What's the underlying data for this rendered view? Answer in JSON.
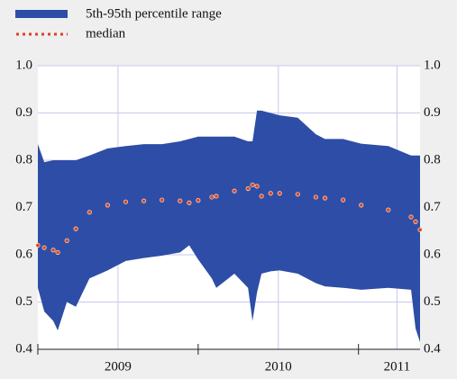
{
  "chart_data": {
    "type": "band",
    "x": [
      2009.0,
      2009.04,
      2009.096,
      2009.124,
      2009.181,
      2009.237,
      2009.322,
      2009.435,
      2009.548,
      2009.661,
      2009.774,
      2009.887,
      2009.944,
      2010.0,
      2010.085,
      2010.113,
      2010.226,
      2010.311,
      2010.339,
      2010.367,
      2010.395,
      2010.452,
      2010.508,
      2010.621,
      2010.734,
      2010.791,
      2010.904,
      2011.017,
      2011.186,
      2011.328,
      2011.356,
      2011.384
    ],
    "series": [
      {
        "name": "5th-95th percentile range",
        "color": "#2e4da6",
        "values": [
          0.834,
          0.796,
          0.8,
          0.8,
          0.8,
          0.8,
          0.81,
          0.825,
          0.83,
          0.834,
          0.834,
          0.84,
          0.845,
          0.85,
          0.85,
          0.85,
          0.85,
          0.84,
          0.84,
          0.905,
          0.905,
          0.9,
          0.895,
          0.89,
          0.855,
          0.845,
          0.845,
          0.835,
          0.83,
          0.81,
          0.81,
          0.81
        ],
        "lower": [
          0.53,
          0.48,
          0.46,
          0.44,
          0.5,
          0.49,
          0.55,
          0.567,
          0.587,
          0.593,
          0.598,
          0.605,
          0.62,
          0.59,
          0.55,
          0.53,
          0.56,
          0.53,
          0.46,
          0.52,
          0.56,
          0.565,
          0.567,
          0.56,
          0.54,
          0.533,
          0.53,
          0.526,
          0.53,
          0.526,
          0.444,
          0.415
        ]
      },
      {
        "name": "median",
        "color": "#d9422b",
        "values": [
          0.62,
          0.615,
          0.61,
          0.605,
          0.63,
          0.655,
          0.69,
          0.705,
          0.712,
          0.714,
          0.716,
          0.714,
          0.71,
          0.715,
          0.722,
          0.724,
          0.735,
          0.74,
          0.748,
          0.745,
          0.724,
          0.73,
          0.73,
          0.728,
          0.722,
          0.72,
          0.716,
          0.705,
          0.695,
          0.68,
          0.67,
          0.653
        ]
      }
    ],
    "xlim": [
      2009.0,
      2011.384
    ],
    "xticks": [
      2009,
      2010,
      2011
    ],
    "xlabels": [
      {
        "value": 2009.5,
        "label": "2009"
      },
      {
        "value": 2010.5,
        "label": "2010"
      },
      {
        "value": 2011.24,
        "label": "2011"
      }
    ],
    "ylim": [
      0.4,
      1.0
    ],
    "yticks": [
      {
        "value": 0.4,
        "label": "0.4"
      },
      {
        "value": 0.5,
        "label": "0.5"
      },
      {
        "value": 0.6,
        "label": "0.6"
      },
      {
        "value": 0.7,
        "label": "0.7"
      },
      {
        "value": 0.8,
        "label": "0.8"
      },
      {
        "value": 0.9,
        "label": "0.9"
      },
      {
        "value": 1.0,
        "label": "1.0"
      }
    ],
    "y2lim": [
      0.4,
      1.0
    ],
    "y2ticks": [
      {
        "value": 0.4,
        "label": "0.4"
      },
      {
        "value": 0.5,
        "label": "0.5"
      },
      {
        "value": 0.6,
        "label": "0.6"
      },
      {
        "value": 0.7,
        "label": "0.7"
      },
      {
        "value": 0.8,
        "label": "0.8"
      },
      {
        "value": 0.9,
        "label": "0.9"
      },
      {
        "value": 1.0,
        "label": "1.0"
      }
    ],
    "grid": true
  }
}
